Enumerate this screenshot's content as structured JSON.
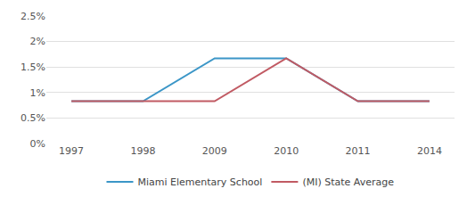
{
  "chart_data": {
    "type": "line",
    "categories": [
      "1997",
      "1998",
      "2009",
      "2010",
      "2011",
      "2014"
    ],
    "series": [
      {
        "name": "Miami Elementary School",
        "color": "#3b96c7",
        "values": [
          0.83,
          0.83,
          1.67,
          1.67,
          0.83,
          0.83
        ]
      },
      {
        "name": "(MI) State Average",
        "color": "#c15a63",
        "values": [
          0.83,
          0.83,
          0.83,
          1.67,
          0.83,
          0.83
        ]
      }
    ],
    "ylim": [
      0,
      2.5
    ],
    "yticks": [
      {
        "value": 0,
        "label": "0%"
      },
      {
        "value": 0.5,
        "label": "0.5%"
      },
      {
        "value": 1,
        "label": "1%"
      },
      {
        "value": 1.5,
        "label": "1.5%"
      },
      {
        "value": 2,
        "label": "2%"
      },
      {
        "value": 2.5,
        "label": "2.5%"
      }
    ],
    "grid": true,
    "legend": "bottom"
  }
}
